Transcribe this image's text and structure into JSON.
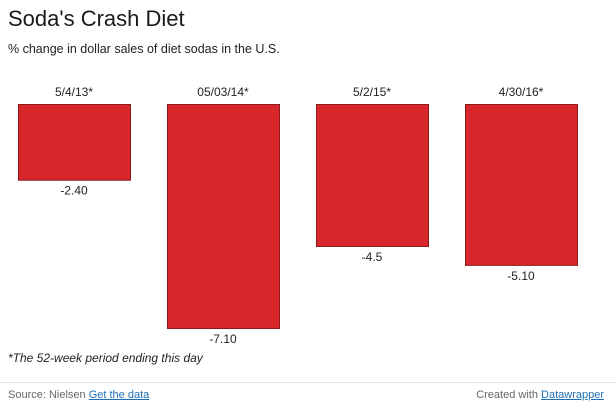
{
  "header": {
    "title": "Soda's Crash Diet",
    "subtitle": "% change in dollar sales of diet sodas in the U.S."
  },
  "note": "*The 52-week period ending this day",
  "footer": {
    "source_label": "Source: Nielsen",
    "data_link": "Get the data",
    "created_label": "Created with",
    "datawrapper_link": "Datawrapper"
  },
  "colors": {
    "bar": "#d7272a",
    "bar_stroke": "#8a1a1c"
  },
  "chart_data": {
    "type": "bar",
    "title": "Soda's Crash Diet",
    "subtitle": "% change in dollar sales of diet sodas in the U.S.",
    "categories": [
      "5/4/13*",
      "05/03/14*",
      "5/2/15*",
      "4/30/16*"
    ],
    "values": [
      -2.4,
      -7.1,
      -4.5,
      -5.1
    ],
    "value_labels": [
      "-2.40",
      "-7.10",
      "-4.5",
      "-5.10"
    ],
    "ylim": [
      -7.1,
      0
    ],
    "grid": false,
    "legend": "none"
  }
}
